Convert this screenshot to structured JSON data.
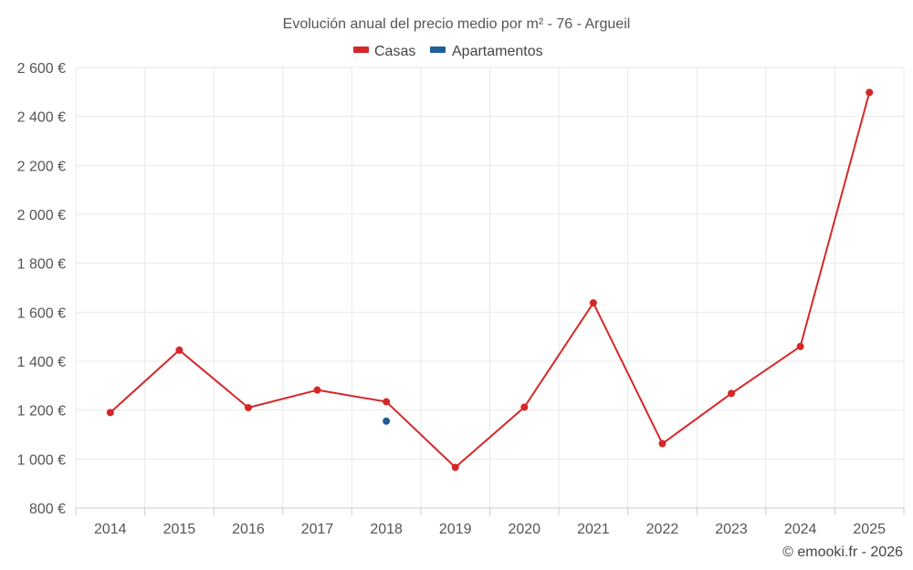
{
  "chart_data": {
    "type": "line",
    "title": "Evolución anual del precio medio por m² - 76 - Argueil",
    "categories": [
      "2014",
      "2015",
      "2016",
      "2017",
      "2018",
      "2019",
      "2020",
      "2021",
      "2022",
      "2023",
      "2024",
      "2025"
    ],
    "ylim": [
      800,
      2600
    ],
    "yticks": [
      800,
      1000,
      1200,
      1400,
      1600,
      1800,
      2000,
      2200,
      2400,
      2600
    ],
    "ytick_labels": [
      "800 €",
      "1 000 €",
      "1 200 €",
      "1 400 €",
      "1 600 €",
      "1 800 €",
      "2 000 €",
      "2 200 €",
      "2 400 €",
      "2 600 €"
    ],
    "xlabel": "",
    "ylabel": "",
    "grid": true,
    "legend_position": "top-center",
    "series": [
      {
        "name": "Casas",
        "color": "#d62728",
        "values": [
          1190,
          1445,
          1210,
          1282,
          1234,
          966,
          1212,
          1638,
          1063,
          1268,
          1460,
          2498
        ]
      },
      {
        "name": "Apartamentos",
        "color": "#1f5f99",
        "values": [
          null,
          null,
          null,
          null,
          1155,
          null,
          null,
          null,
          null,
          null,
          null,
          null
        ]
      }
    ]
  },
  "credit": "© emooki.fr - 2026"
}
